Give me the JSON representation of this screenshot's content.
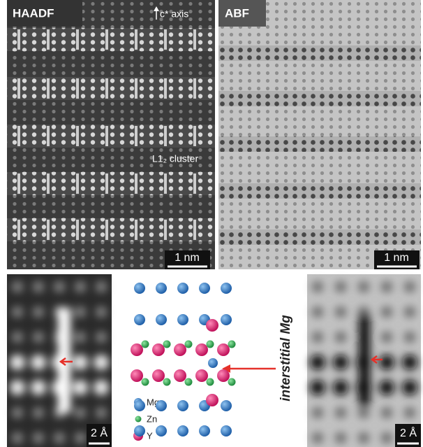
{
  "panels": {
    "haadf": {
      "label": "HAADF",
      "axis_label": "c* axis",
      "cluster_label": "L1₂ cluster",
      "scale_bar": "1 nm"
    },
    "abf": {
      "label": "ABF",
      "scale_bar": "1 nm"
    },
    "haadf_zoom": {
      "scale_bar": "2 Å"
    },
    "model": {
      "annotation": "interstitial Mg",
      "legend": [
        "Mg",
        "Zn",
        "Y"
      ]
    },
    "abf_zoom": {
      "scale_bar": "2 Å"
    }
  }
}
